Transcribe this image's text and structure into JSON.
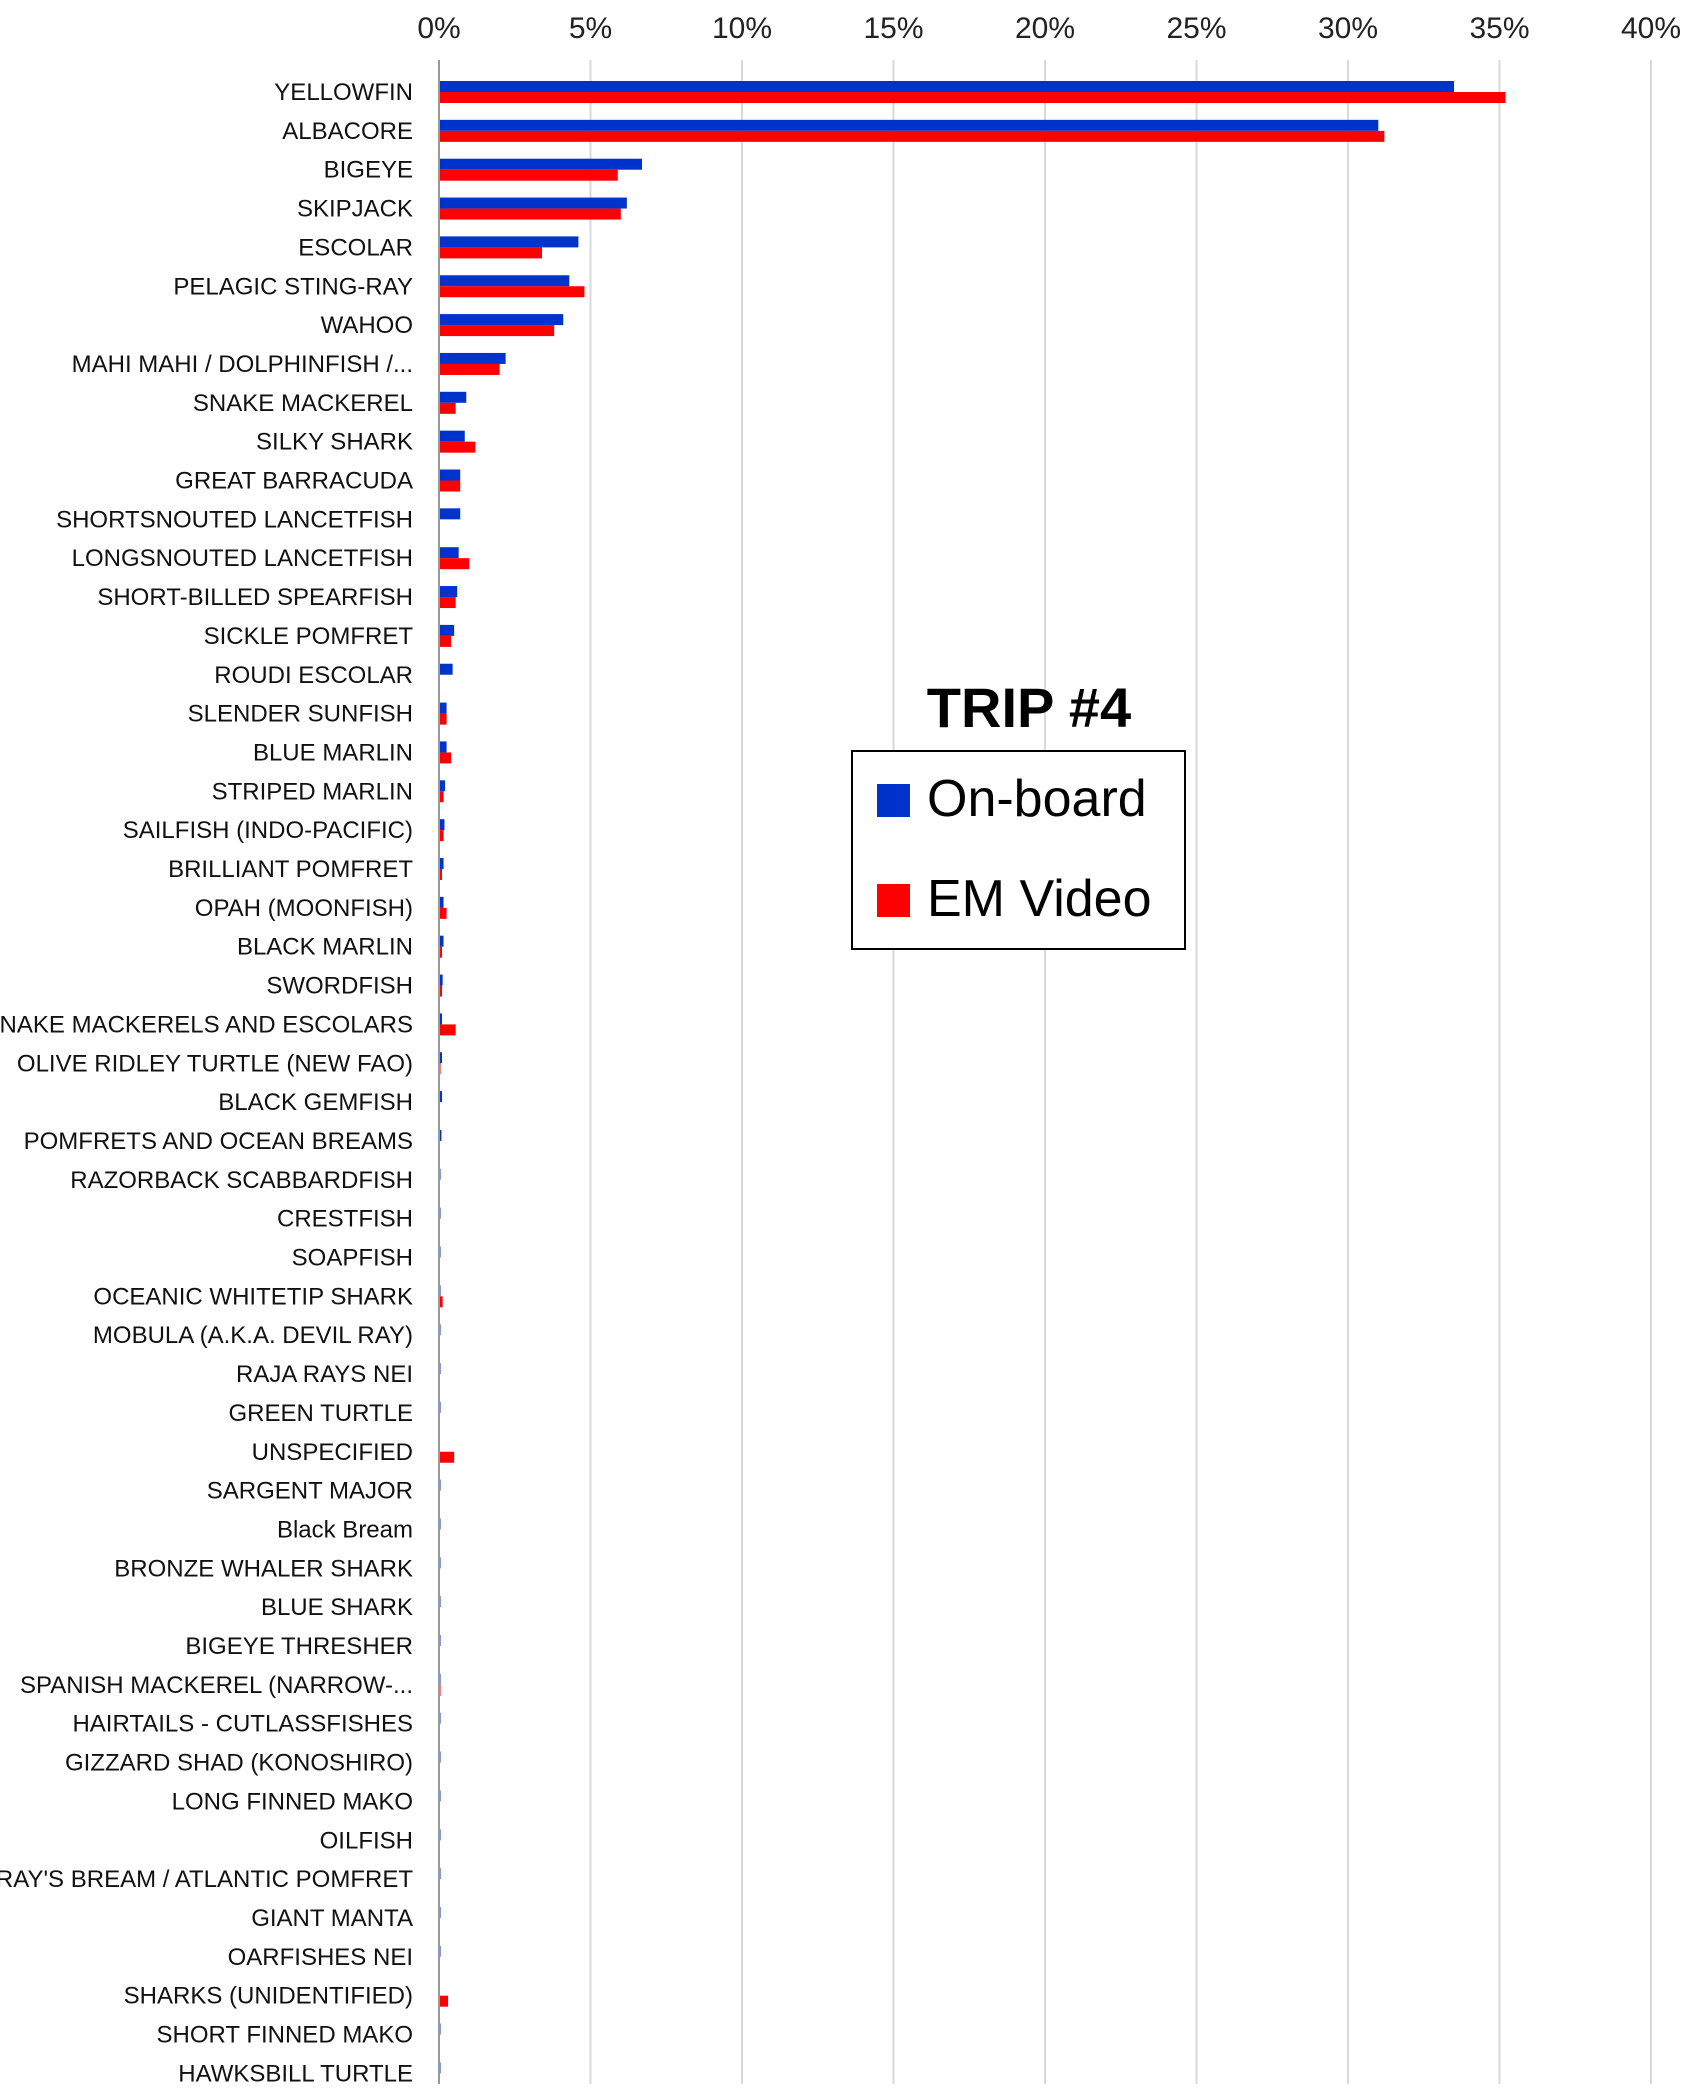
{
  "chart_data": {
    "type": "bar",
    "orientation": "horizontal",
    "title": "TRIP #4",
    "xlim": [
      0,
      40
    ],
    "xticks": [
      "0%",
      "5%",
      "10%",
      "15%",
      "20%",
      "25%",
      "30%",
      "35%",
      "40%"
    ],
    "x_axis_position": "top",
    "grid": true,
    "legend_placement": "center",
    "categories": [
      "YELLOWFIN",
      "ALBACORE",
      "BIGEYE",
      "SKIPJACK",
      "ESCOLAR",
      "PELAGIC STING-RAY",
      "WAHOO",
      "MAHI MAHI / DOLPHINFISH /...",
      "SNAKE MACKEREL",
      "SILKY SHARK",
      "GREAT BARRACUDA",
      "SHORTSNOUTED LANCETFISH",
      "LONGSNOUTED LANCETFISH",
      "SHORT-BILLED SPEARFISH",
      "SICKLE POMFRET",
      "ROUDI ESCOLAR",
      "SLENDER SUNFISH",
      "BLUE MARLIN",
      "STRIPED MARLIN",
      "SAILFISH (INDO-PACIFIC)",
      "BRILLIANT POMFRET",
      "OPAH (MOONFISH)",
      "BLACK MARLIN",
      "SWORDFISH",
      "SNAKE MACKERELS AND ESCOLARS",
      "OLIVE RIDLEY TURTLE (NEW FAO)",
      "BLACK GEMFISH",
      "POMFRETS AND OCEAN BREAMS",
      "RAZORBACK SCABBARDFISH",
      "CRESTFISH",
      "SOAPFISH",
      "OCEANIC WHITETIP SHARK",
      "MOBULA (A.K.A. DEVIL RAY)",
      "RAJA RAYS NEI",
      "GREEN TURTLE",
      "UNSPECIFIED",
      "SARGENT MAJOR",
      "Black Bream",
      "BRONZE WHALER SHARK",
      "BLUE SHARK",
      "BIGEYE THRESHER",
      "SPANISH MACKEREL (NARROW-...",
      "HAIRTAILS - CUTLASSFISHES",
      "GIZZARD SHAD (KONOSHIRO)",
      "LONG FINNED MAKO",
      "OILFISH",
      "RAY'S BREAM / ATLANTIC POMFRET",
      "GIANT MANTA",
      "OARFISHES NEI",
      "SHARKS (UNIDENTIFIED)",
      "SHORT FINNED MAKO",
      "HAWKSBILL TURTLE"
    ],
    "series": [
      {
        "name": "On-board",
        "color": "#0033cc",
        "values": [
          33.5,
          31.0,
          6.7,
          6.2,
          4.6,
          4.3,
          4.1,
          2.2,
          0.9,
          0.85,
          0.7,
          0.7,
          0.65,
          0.6,
          0.5,
          0.45,
          0.25,
          0.25,
          0.2,
          0.18,
          0.15,
          0.15,
          0.15,
          0.12,
          0.1,
          0.1,
          0.1,
          0.08,
          0.03,
          0.03,
          0.02,
          0.02,
          0.02,
          0.02,
          0.02,
          0.0,
          0.02,
          0.01,
          0.01,
          0.01,
          0.01,
          0.01,
          0.01,
          0.01,
          0.01,
          0.01,
          0.01,
          0.01,
          0.01,
          0.0,
          0.01,
          0.01
        ]
      },
      {
        "name": "EM Video",
        "color": "#ff0000",
        "values": [
          35.2,
          31.2,
          5.9,
          6.0,
          3.4,
          4.8,
          3.8,
          2.0,
          0.55,
          1.2,
          0.7,
          0.0,
          1.0,
          0.55,
          0.4,
          0.0,
          0.25,
          0.4,
          0.15,
          0.15,
          0.1,
          0.25,
          0.1,
          0.1,
          0.55,
          0.05,
          0.0,
          0.0,
          0.0,
          0.0,
          0.0,
          0.12,
          0.0,
          0.0,
          0.0,
          0.5,
          0.0,
          0.0,
          0.0,
          0.0,
          0.0,
          0.05,
          0.0,
          0.0,
          0.0,
          0.0,
          0.0,
          0.0,
          0.0,
          0.3,
          0.0,
          0.0
        ]
      }
    ]
  }
}
